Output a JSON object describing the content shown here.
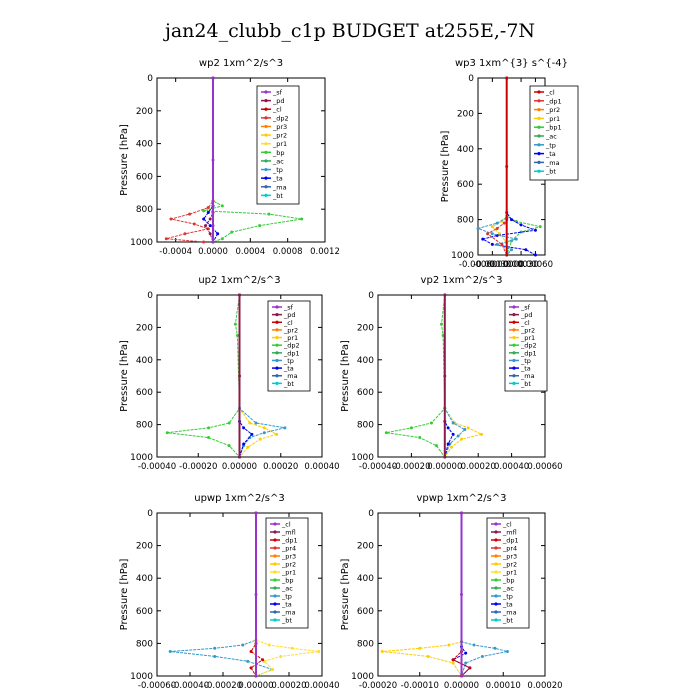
{
  "figure_title": "jan24_clubb_c1p  BUDGET at255E,-7N",
  "chart_data": [
    {
      "type": "line",
      "title": "wp2   1xm^2/s^3",
      "ylabel": "Pressure [hPa]",
      "xlim": [
        -0.0006,
        0.0012
      ],
      "ylim": [
        1000,
        0
      ],
      "xticks": [
        -0.0004,
        0.0,
        0.0004,
        0.0008,
        0.0012
      ],
      "xtick_labels": [
        "-0.0004",
        "0.0000",
        "0.0004",
        "0.0008",
        "0.0012"
      ],
      "yticks": [
        0,
        200,
        400,
        600,
        800,
        1000
      ],
      "ytick_labels": [
        "0",
        "200",
        "400",
        "600",
        "800",
        "1000"
      ],
      "legend": [
        "_sf",
        "_pd",
        "_cl",
        "_dp2",
        "_pr3",
        "_pr2",
        "_pr1",
        "_bp",
        "_ac",
        "_tp",
        "_ta",
        "_ma",
        "_bt"
      ],
      "legend_colors": [
        "#9933cc",
        "#8b1a4a",
        "#cc0000",
        "#dd3333",
        "#ff7f00",
        "#ffcc00",
        "#ffdd33",
        "#33cc33",
        "#33aa55",
        "#3399cc",
        "#0000ee",
        "#3366aa",
        "#00cccc"
      ],
      "series": [
        {
          "name": "_bp",
          "color": "#33cc33",
          "x": [
            0,
            0,
            0.0001,
            -0.0001,
            0.0006,
            0.00095,
            0.0005,
            0.0002,
            0.0001,
            0
          ],
          "y": [
            0,
            750,
            780,
            810,
            830,
            860,
            900,
            940,
            980,
            1000
          ]
        },
        {
          "name": "_dp2",
          "color": "#dd3333",
          "x": [
            0,
            0,
            -5e-05,
            -0.00025,
            -0.00045,
            -0.0002,
            -5e-05,
            -0.0003,
            -0.0005,
            -0.0001
          ],
          "y": [
            0,
            750,
            790,
            830,
            860,
            890,
            920,
            950,
            980,
            1000
          ]
        },
        {
          "name": "_ta",
          "color": "#0000ee",
          "x": [
            0,
            0,
            -5e-05,
            -0.0001,
            -3e-05,
            5e-05,
            0.0
          ],
          "y": [
            0,
            780,
            820,
            860,
            900,
            950,
            1000
          ]
        },
        {
          "name": "_pd",
          "color": "#8b1a4a",
          "x": [
            0,
            0,
            -3e-05,
            -8e-05,
            -3e-05,
            0.0
          ],
          "y": [
            0,
            820,
            860,
            900,
            950,
            1000
          ]
        },
        {
          "name": "_sf",
          "color": "#9933cc",
          "x": [
            0,
            0,
            0,
            0
          ],
          "y": [
            0,
            500,
            900,
            1000
          ]
        }
      ]
    },
    {
      "type": "line",
      "title": "wp3   1xm^{3} s^{-4}",
      "ylabel": "Pressure [hPa]",
      "xlim": [
        -0.0006,
        0.0008
      ],
      "ylim": [
        1000,
        0
      ],
      "xticks": [
        -0.0006,
        -0.0003,
        0.0,
        0.0003,
        0.0006
      ],
      "xtick_labels": [
        "-0.00060",
        "-0.00030",
        "0.00000",
        "0.00030",
        "0.00060"
      ],
      "yticks": [
        0,
        200,
        400,
        600,
        800,
        1000
      ],
      "ytick_labels": [
        "0",
        "200",
        "400",
        "600",
        "800",
        "1000"
      ],
      "legend": [
        "_cl",
        "_dp1",
        "_pr2",
        "_pr1",
        "_bp1",
        "_ac",
        "_tp",
        "_ta",
        "_ma",
        "_bt"
      ],
      "legend_colors": [
        "#cc0000",
        "#dd3333",
        "#ff7f00",
        "#ffcc00",
        "#33cc33",
        "#33aa55",
        "#3399cc",
        "#0000ee",
        "#3366aa",
        "#00cccc"
      ],
      "series": [
        {
          "name": "_bp1",
          "color": "#33cc33",
          "x": [
            0,
            0,
            0.0002,
            0.0007,
            0.0003,
            0.0001,
            0
          ],
          "y": [
            0,
            780,
            810,
            840,
            870,
            920,
            1000
          ]
        },
        {
          "name": "_pr1",
          "color": "#ffcc00",
          "x": [
            0,
            0,
            -0.0001,
            -0.0003,
            -0.00015,
            0.0,
            0
          ],
          "y": [
            0,
            780,
            810,
            840,
            880,
            930,
            1000
          ]
        },
        {
          "name": "_ta",
          "color": "#0000ee",
          "x": [
            0,
            0,
            0.0001,
            0.0003,
            0.0006,
            -0.0002,
            -0.0005,
            -0.0003,
            0.0004,
            0.0006
          ],
          "y": [
            0,
            760,
            800,
            830,
            860,
            890,
            910,
            940,
            970,
            1000
          ]
        },
        {
          "name": "_tp",
          "color": "#3399cc",
          "x": [
            0,
            0,
            -0.0002,
            -0.0006,
            -0.0003,
            0.0002,
            -0.0002,
            0.0001,
            0
          ],
          "y": [
            0,
            790,
            820,
            850,
            880,
            910,
            940,
            970,
            1000
          ]
        },
        {
          "name": "_dp1",
          "color": "#dd3333",
          "x": [
            0,
            0,
            -5e-05,
            -0.0002,
            -0.0004,
            -0.0001,
            0
          ],
          "y": [
            0,
            800,
            820,
            850,
            880,
            940,
            1000
          ]
        },
        {
          "name": "_cl",
          "color": "#cc0000",
          "x": [
            0,
            0,
            0
          ],
          "y": [
            0,
            500,
            1000
          ]
        }
      ]
    },
    {
      "type": "line",
      "title": "up2   1xm^2/s^3",
      "ylabel": "Pressure [hPa]",
      "xlim": [
        -0.0004,
        0.0004
      ],
      "ylim": [
        1000,
        0
      ],
      "xticks": [
        -0.0004,
        -0.0002,
        0.0,
        0.0002,
        0.0004
      ],
      "xtick_labels": [
        "-0.00040",
        "-0.00020",
        "0.00000",
        "0.00020",
        "0.00040"
      ],
      "yticks": [
        0,
        200,
        400,
        600,
        800,
        1000
      ],
      "ytick_labels": [
        "0",
        "200",
        "400",
        "600",
        "800",
        "1000"
      ],
      "legend": [
        "_sf",
        "_pd",
        "_cl",
        "_pr2",
        "_pr1",
        "_dp2",
        "_dp1",
        "_tp",
        "_ta",
        "_ma",
        "_bt"
      ],
      "legend_colors": [
        "#9933cc",
        "#8b1a4a",
        "#cc0000",
        "#ff7f00",
        "#ffcc00",
        "#33cc33",
        "#33aa55",
        "#3399cc",
        "#0000ee",
        "#3366aa",
        "#00cccc"
      ],
      "series": [
        {
          "name": "_dp2",
          "color": "#33cc33",
          "x": [
            0,
            -2e-05,
            -1e-05,
            0,
            -5e-05,
            -0.00015,
            -0.00035,
            -0.00015,
            -5e-05,
            0
          ],
          "y": [
            0,
            180,
            250,
            700,
            790,
            820,
            850,
            880,
            930,
            1000
          ]
        },
        {
          "name": "_pr1",
          "color": "#ffcc00",
          "x": [
            0,
            0,
            5e-05,
            0.00012,
            0.00018,
            0.0001,
            4e-05,
            0
          ],
          "y": [
            0,
            700,
            790,
            820,
            860,
            890,
            940,
            1000
          ]
        },
        {
          "name": "_tp",
          "color": "#3399cc",
          "x": [
            0,
            0,
            8e-05,
            0.00022,
            0.00012,
            5e-05,
            2e-05,
            0
          ],
          "y": [
            0,
            700,
            790,
            820,
            850,
            880,
            930,
            1000
          ]
        },
        {
          "name": "_ta",
          "color": "#0000ee",
          "x": [
            0,
            0,
            2e-05,
            6e-05,
            2e-05,
            0
          ],
          "y": [
            0,
            780,
            820,
            860,
            920,
            1000
          ]
        },
        {
          "name": "_pd",
          "color": "#8b1a4a",
          "x": [
            0,
            0,
            0
          ],
          "y": [
            0,
            500,
            1000
          ]
        }
      ]
    },
    {
      "type": "line",
      "title": "vp2   1xm^2/s^3",
      "ylabel": "Pressure [hPa]",
      "xlim": [
        -0.0004,
        0.0006
      ],
      "ylim": [
        1000,
        0
      ],
      "xticks": [
        -0.0004,
        -0.0002,
        0.0,
        0.0002,
        0.0004,
        0.0006
      ],
      "xtick_labels": [
        "-0.00040",
        "-0.00020",
        "0.00000",
        "0.00020",
        "0.00040",
        "0.00060"
      ],
      "yticks": [
        0,
        200,
        400,
        600,
        800,
        1000
      ],
      "ytick_labels": [
        "0",
        "200",
        "400",
        "600",
        "800",
        "1000"
      ],
      "legend": [
        "_sf",
        "_pd",
        "_cl",
        "_pr2",
        "_pr1",
        "_dp2",
        "_dp1",
        "_tp",
        "_ta",
        "_ma",
        "_bt"
      ],
      "legend_colors": [
        "#9933cc",
        "#8b1a4a",
        "#cc0000",
        "#ff7f00",
        "#ffcc00",
        "#33cc33",
        "#33aa55",
        "#3399cc",
        "#0000ee",
        "#3366aa",
        "#00cccc"
      ],
      "series": [
        {
          "name": "_dp2",
          "color": "#33cc33",
          "x": [
            0,
            -2e-05,
            -1e-05,
            0,
            -8e-05,
            -0.0002,
            -0.00035,
            -0.00015,
            -5e-05,
            0
          ],
          "y": [
            0,
            180,
            250,
            700,
            790,
            820,
            850,
            880,
            930,
            1000
          ]
        },
        {
          "name": "_pr1",
          "color": "#ffcc00",
          "x": [
            0,
            0,
            6e-05,
            0.00014,
            0.00022,
            0.0001,
            4e-05,
            0
          ],
          "y": [
            0,
            700,
            790,
            820,
            860,
            890,
            940,
            1000
          ]
        },
        {
          "name": "_tp",
          "color": "#3399cc",
          "x": [
            0,
            0,
            5e-05,
            0.00012,
            8e-05,
            3e-05,
            0
          ],
          "y": [
            0,
            700,
            790,
            830,
            870,
            920,
            1000
          ]
        },
        {
          "name": "_ta",
          "color": "#0000ee",
          "x": [
            0,
            0,
            2e-05,
            5e-05,
            2e-05,
            0
          ],
          "y": [
            0,
            780,
            820,
            860,
            920,
            1000
          ]
        },
        {
          "name": "_pd",
          "color": "#8b1a4a",
          "x": [
            0,
            0,
            0
          ],
          "y": [
            0,
            500,
            1000
          ]
        }
      ]
    },
    {
      "type": "line",
      "title": "upwp   1xm^2/s^3",
      "ylabel": "Pressure [hPa]",
      "xlim": [
        -0.0006,
        0.0004
      ],
      "ylim": [
        1000,
        0
      ],
      "xticks": [
        -0.0006,
        -0.0004,
        -0.0002,
        0.0,
        0.0002,
        0.0004
      ],
      "xtick_labels": [
        "-0.00060",
        "-0.00040",
        "-0.00020",
        "0.00000",
        "0.00020",
        "0.00040"
      ],
      "yticks": [
        0,
        200,
        400,
        600,
        800,
        1000
      ],
      "ytick_labels": [
        "0",
        "200",
        "400",
        "600",
        "800",
        "1000"
      ],
      "legend": [
        "_cl",
        "_mfl",
        "_dp1",
        "_pr4",
        "_pr3",
        "_pr2",
        "_pr1",
        "_bp",
        "_ac",
        "_tp",
        "_ta",
        "_ma",
        "_bt"
      ],
      "legend_colors": [
        "#9933cc",
        "#8b1a4a",
        "#cc0000",
        "#dd3333",
        "#ff7f00",
        "#ffcc00",
        "#ffdd33",
        "#33cc33",
        "#33aa55",
        "#3399cc",
        "#0000ee",
        "#3366aa",
        "#00cccc"
      ],
      "series": [
        {
          "name": "_tp",
          "color": "#3399cc",
          "x": [
            0,
            0,
            -8e-05,
            -0.00025,
            -0.00052,
            -0.00025,
            -5e-05,
            0.0001,
            0
          ],
          "y": [
            0,
            780,
            810,
            830,
            850,
            880,
            910,
            960,
            1000
          ]
        },
        {
          "name": "_pr1",
          "color": "#ffdd33",
          "x": [
            0,
            0,
            8e-05,
            0.00022,
            0.00038,
            0.00015,
            5e-05,
            0.0001,
            0
          ],
          "y": [
            0,
            780,
            810,
            830,
            850,
            880,
            910,
            960,
            1000
          ]
        },
        {
          "name": "_dp1",
          "color": "#cc0000",
          "x": [
            0,
            0,
            -3e-05,
            4e-05,
            -3e-05,
            0
          ],
          "y": [
            0,
            800,
            850,
            900,
            950,
            1000
          ]
        },
        {
          "name": "_cl",
          "color": "#9933cc",
          "x": [
            0,
            0,
            0
          ],
          "y": [
            0,
            500,
            1000
          ]
        }
      ]
    },
    {
      "type": "line",
      "title": "vpwp   1xm^2/s^3",
      "ylabel": "Pressure [hPa]",
      "xlim": [
        -0.0002,
        0.0002
      ],
      "ylim": [
        1000,
        0
      ],
      "xticks": [
        -0.0002,
        -0.0001,
        0.0,
        0.0001,
        0.0002
      ],
      "xtick_labels": [
        "-0.00020",
        "-0.00010",
        "0.00000",
        "0.00010",
        "0.00020"
      ],
      "yticks": [
        0,
        200,
        400,
        600,
        800,
        1000
      ],
      "ytick_labels": [
        "0",
        "200",
        "400",
        "600",
        "800",
        "1000"
      ],
      "legend": [
        "_cl",
        "_mfl",
        "_dp1",
        "_pr4",
        "_pr3",
        "_pr2",
        "_pr1",
        "_bp",
        "_ac",
        "_tp",
        "_ta",
        "_ma",
        "_bt"
      ],
      "legend_colors": [
        "#9933cc",
        "#8b1a4a",
        "#cc0000",
        "#dd3333",
        "#ff7f00",
        "#ffcc00",
        "#ffdd33",
        "#33cc33",
        "#33aa55",
        "#3399cc",
        "#0000ee",
        "#3366aa",
        "#00cccc"
      ],
      "series": [
        {
          "name": "_pr1",
          "color": "#ffcc00",
          "x": [
            0,
            0,
            -3e-05,
            -0.0001,
            -0.00019,
            -8e-05,
            -2e-05,
            0
          ],
          "y": [
            0,
            790,
            810,
            830,
            850,
            880,
            920,
            1000
          ]
        },
        {
          "name": "_tp",
          "color": "#3399cc",
          "x": [
            0,
            0,
            3e-05,
            8e-05,
            0.00011,
            5e-05,
            1e-05,
            0
          ],
          "y": [
            0,
            790,
            810,
            830,
            850,
            880,
            920,
            1000
          ]
        },
        {
          "name": "_ta",
          "color": "#0000ee",
          "x": [
            0,
            0,
            1e-05,
            -2e-05,
            2e-05,
            0
          ],
          "y": [
            0,
            820,
            860,
            900,
            950,
            1000
          ]
        },
        {
          "name": "_dp1",
          "color": "#cc0000",
          "x": [
            0,
            0,
            -2e-05,
            2e-05,
            0
          ],
          "y": [
            0,
            850,
            900,
            950,
            1000
          ]
        },
        {
          "name": "_cl",
          "color": "#9933cc",
          "x": [
            0,
            0,
            0
          ],
          "y": [
            0,
            500,
            1000
          ]
        }
      ]
    }
  ]
}
